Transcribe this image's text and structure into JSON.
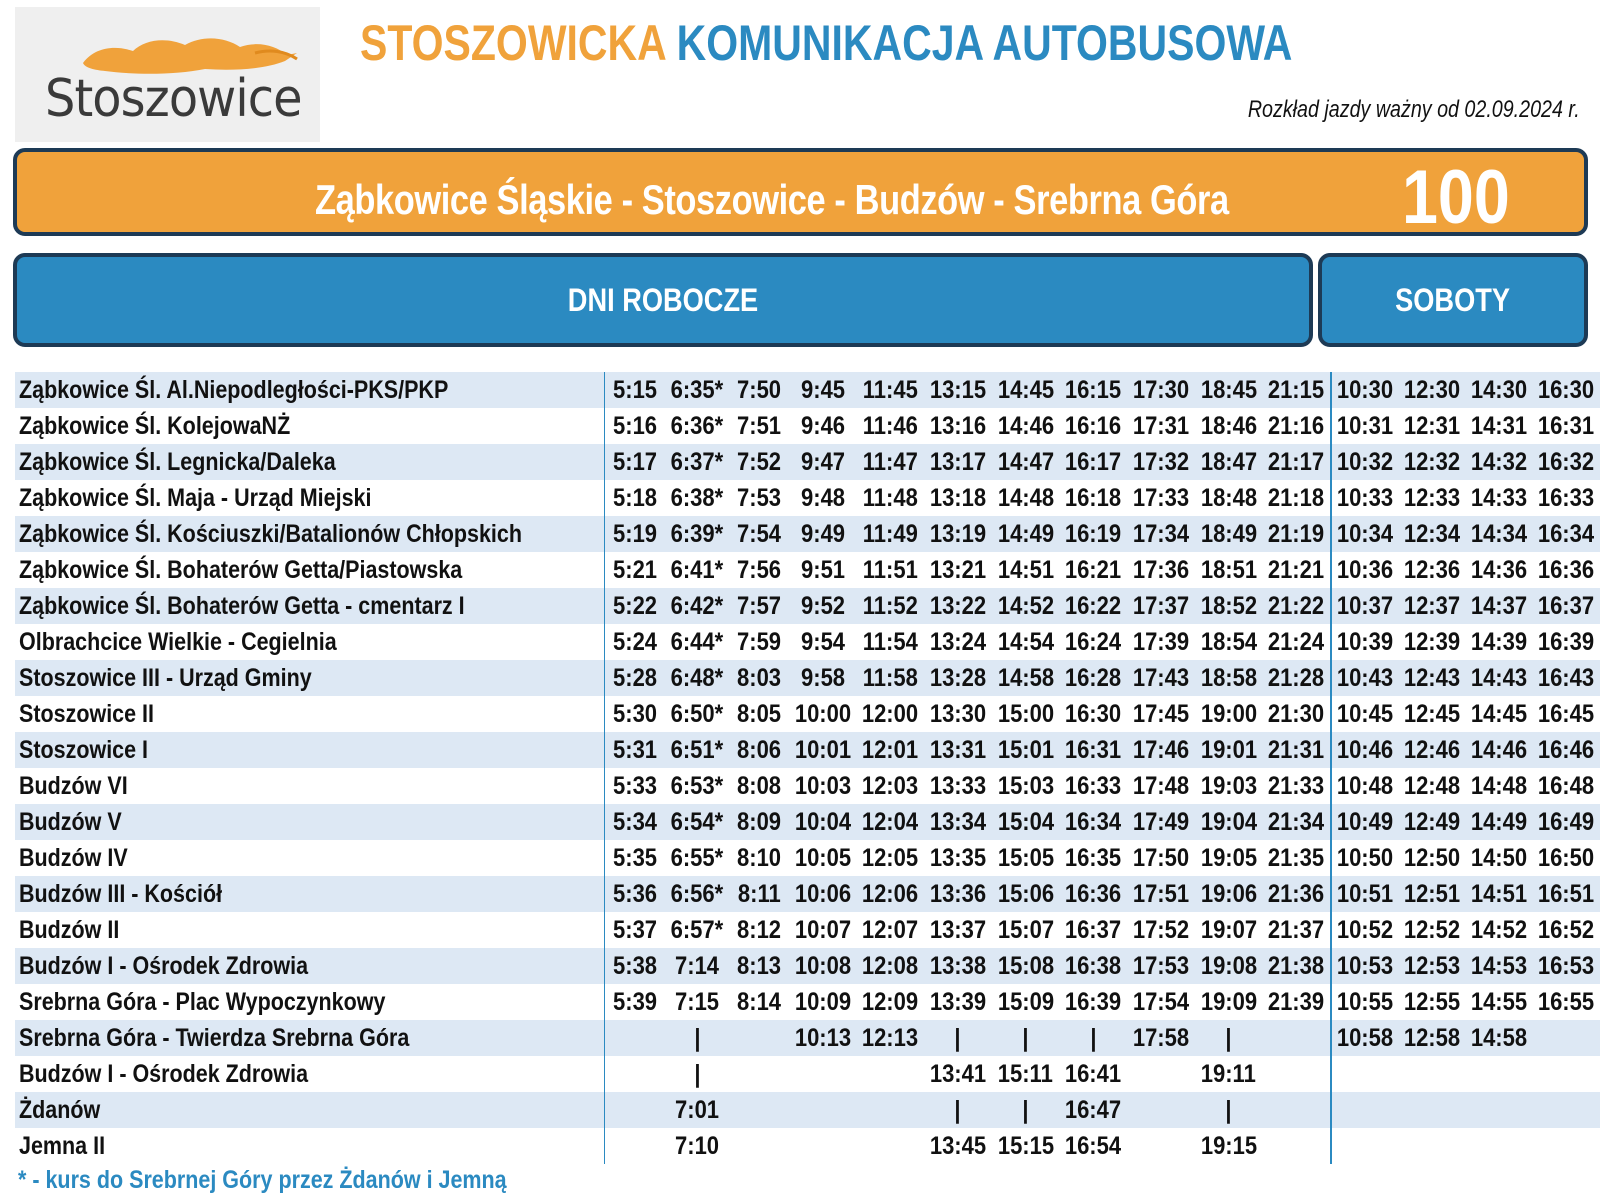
{
  "logo": {
    "text": "Stoszowice",
    "icon": "orange-brush-logo-icon"
  },
  "header": {
    "title_part1": "STOSZOWICKA",
    "title_part2": "KOMUNIKACJA AUTOBUSOWA",
    "valid_from": "Rozkład jazdy ważny od 02.09.2024 r."
  },
  "route": {
    "name": "Ząbkowice Śląskie - Stoszowice - Budzów - Srebrna Góra",
    "number": "100"
  },
  "sections": {
    "weekdays": "DNI ROBOCZE",
    "saturdays": "SOBOTY"
  },
  "colors": {
    "orange": "#f0a23b",
    "blue": "#2b8ac1",
    "navy": "#1d3a55",
    "row_stripe": "#dde8f4"
  },
  "rows": [
    {
      "stop": "Ząbkowice Śl. Al.Niepodległości-PKS/PKP",
      "weekdays": [
        "5:15",
        "6:35*",
        "7:50",
        "9:45",
        "11:45",
        "13:15",
        "14:45",
        "16:15",
        "17:30",
        "18:45",
        "21:15"
      ],
      "saturdays": [
        "10:30",
        "12:30",
        "14:30",
        "16:30"
      ]
    },
    {
      "stop": "Ząbkowice Śl. KolejowaNŻ",
      "weekdays": [
        "5:16",
        "6:36*",
        "7:51",
        "9:46",
        "11:46",
        "13:16",
        "14:46",
        "16:16",
        "17:31",
        "18:46",
        "21:16"
      ],
      "saturdays": [
        "10:31",
        "12:31",
        "14:31",
        "16:31"
      ]
    },
    {
      "stop": "Ząbkowice Śl. Legnicka/Daleka",
      "weekdays": [
        "5:17",
        "6:37*",
        "7:52",
        "9:47",
        "11:47",
        "13:17",
        "14:47",
        "16:17",
        "17:32",
        "18:47",
        "21:17"
      ],
      "saturdays": [
        "10:32",
        "12:32",
        "14:32",
        "16:32"
      ]
    },
    {
      "stop": "Ząbkowice Śl. Maja - Urząd Miejski",
      "weekdays": [
        "5:18",
        "6:38*",
        "7:53",
        "9:48",
        "11:48",
        "13:18",
        "14:48",
        "16:18",
        "17:33",
        "18:48",
        "21:18"
      ],
      "saturdays": [
        "10:33",
        "12:33",
        "14:33",
        "16:33"
      ]
    },
    {
      "stop": "Ząbkowice Śl. Kościuszki/Batalionów Chłopskich",
      "weekdays": [
        "5:19",
        "6:39*",
        "7:54",
        "9:49",
        "11:49",
        "13:19",
        "14:49",
        "16:19",
        "17:34",
        "18:49",
        "21:19"
      ],
      "saturdays": [
        "10:34",
        "12:34",
        "14:34",
        "16:34"
      ]
    },
    {
      "stop": "Ząbkowice Śl. Bohaterów Getta/Piastowska",
      "weekdays": [
        "5:21",
        "6:41*",
        "7:56",
        "9:51",
        "11:51",
        "13:21",
        "14:51",
        "16:21",
        "17:36",
        "18:51",
        "21:21"
      ],
      "saturdays": [
        "10:36",
        "12:36",
        "14:36",
        "16:36"
      ]
    },
    {
      "stop": "Ząbkowice Śl. Bohaterów Getta - cmentarz I",
      "weekdays": [
        "5:22",
        "6:42*",
        "7:57",
        "9:52",
        "11:52",
        "13:22",
        "14:52",
        "16:22",
        "17:37",
        "18:52",
        "21:22"
      ],
      "saturdays": [
        "10:37",
        "12:37",
        "14:37",
        "16:37"
      ]
    },
    {
      "stop": "Olbrachcice Wielkie - Cegielnia",
      "weekdays": [
        "5:24",
        "6:44*",
        "7:59",
        "9:54",
        "11:54",
        "13:24",
        "14:54",
        "16:24",
        "17:39",
        "18:54",
        "21:24"
      ],
      "saturdays": [
        "10:39",
        "12:39",
        "14:39",
        "16:39"
      ]
    },
    {
      "stop": "Stoszowice III - Urząd Gminy",
      "weekdays": [
        "5:28",
        "6:48*",
        "8:03",
        "9:58",
        "11:58",
        "13:28",
        "14:58",
        "16:28",
        "17:43",
        "18:58",
        "21:28"
      ],
      "saturdays": [
        "10:43",
        "12:43",
        "14:43",
        "16:43"
      ]
    },
    {
      "stop": "Stoszowice II",
      "weekdays": [
        "5:30",
        "6:50*",
        "8:05",
        "10:00",
        "12:00",
        "13:30",
        "15:00",
        "16:30",
        "17:45",
        "19:00",
        "21:30"
      ],
      "saturdays": [
        "10:45",
        "12:45",
        "14:45",
        "16:45"
      ]
    },
    {
      "stop": "Stoszowice I",
      "weekdays": [
        "5:31",
        "6:51*",
        "8:06",
        "10:01",
        "12:01",
        "13:31",
        "15:01",
        "16:31",
        "17:46",
        "19:01",
        "21:31"
      ],
      "saturdays": [
        "10:46",
        "12:46",
        "14:46",
        "16:46"
      ]
    },
    {
      "stop": "Budzów VI",
      "weekdays": [
        "5:33",
        "6:53*",
        "8:08",
        "10:03",
        "12:03",
        "13:33",
        "15:03",
        "16:33",
        "17:48",
        "19:03",
        "21:33"
      ],
      "saturdays": [
        "10:48",
        "12:48",
        "14:48",
        "16:48"
      ]
    },
    {
      "stop": "Budzów V",
      "weekdays": [
        "5:34",
        "6:54*",
        "8:09",
        "10:04",
        "12:04",
        "13:34",
        "15:04",
        "16:34",
        "17:49",
        "19:04",
        "21:34"
      ],
      "saturdays": [
        "10:49",
        "12:49",
        "14:49",
        "16:49"
      ]
    },
    {
      "stop": "Budzów IV",
      "weekdays": [
        "5:35",
        "6:55*",
        "8:10",
        "10:05",
        "12:05",
        "13:35",
        "15:05",
        "16:35",
        "17:50",
        "19:05",
        "21:35"
      ],
      "saturdays": [
        "10:50",
        "12:50",
        "14:50",
        "16:50"
      ]
    },
    {
      "stop": "Budzów III - Kościół",
      "weekdays": [
        "5:36",
        "6:56*",
        "8:11",
        "10:06",
        "12:06",
        "13:36",
        "15:06",
        "16:36",
        "17:51",
        "19:06",
        "21:36"
      ],
      "saturdays": [
        "10:51",
        "12:51",
        "14:51",
        "16:51"
      ]
    },
    {
      "stop": "Budzów II",
      "weekdays": [
        "5:37",
        "6:57*",
        "8:12",
        "10:07",
        "12:07",
        "13:37",
        "15:07",
        "16:37",
        "17:52",
        "19:07",
        "21:37"
      ],
      "saturdays": [
        "10:52",
        "12:52",
        "14:52",
        "16:52"
      ]
    },
    {
      "stop": "Budzów I - Ośrodek Zdrowia",
      "weekdays": [
        "5:38",
        "7:14",
        "8:13",
        "10:08",
        "12:08",
        "13:38",
        "15:08",
        "16:38",
        "17:53",
        "19:08",
        "21:38"
      ],
      "saturdays": [
        "10:53",
        "12:53",
        "14:53",
        "16:53"
      ]
    },
    {
      "stop": "Srebrna Góra - Plac Wypoczynkowy",
      "weekdays": [
        "5:39",
        "7:15",
        "8:14",
        "10:09",
        "12:09",
        "13:39",
        "15:09",
        "16:39",
        "17:54",
        "19:09",
        "21:39"
      ],
      "saturdays": [
        "10:55",
        "12:55",
        "14:55",
        "16:55"
      ]
    },
    {
      "stop": "Srebrna Góra - Twierdza Srebrna Góra",
      "weekdays": [
        "",
        "|",
        "",
        "10:13",
        "12:13",
        "|",
        "|",
        "|",
        "17:58",
        "|",
        ""
      ],
      "saturdays": [
        "10:58",
        "12:58",
        "14:58",
        ""
      ]
    },
    {
      "stop": "Budzów I - Ośrodek Zdrowia",
      "weekdays": [
        "",
        "|",
        "",
        "",
        "",
        "13:41",
        "15:11",
        "16:41",
        "",
        "19:11",
        ""
      ],
      "saturdays": [
        "",
        "",
        "",
        ""
      ]
    },
    {
      "stop": "Żdanów",
      "weekdays": [
        "",
        "7:01",
        "",
        "",
        "",
        "|",
        "|",
        "16:47",
        "",
        "|",
        ""
      ],
      "saturdays": [
        "",
        "",
        "",
        ""
      ]
    },
    {
      "stop": "Jemna II",
      "weekdays": [
        "",
        "7:10",
        "",
        "",
        "",
        "13:45",
        "15:15",
        "16:54",
        "",
        "19:15",
        ""
      ],
      "saturdays": [
        "",
        "",
        "",
        ""
      ]
    }
  ],
  "footnote": "* - kurs do Srebrnej Góry przez Żdanów i Jemną"
}
